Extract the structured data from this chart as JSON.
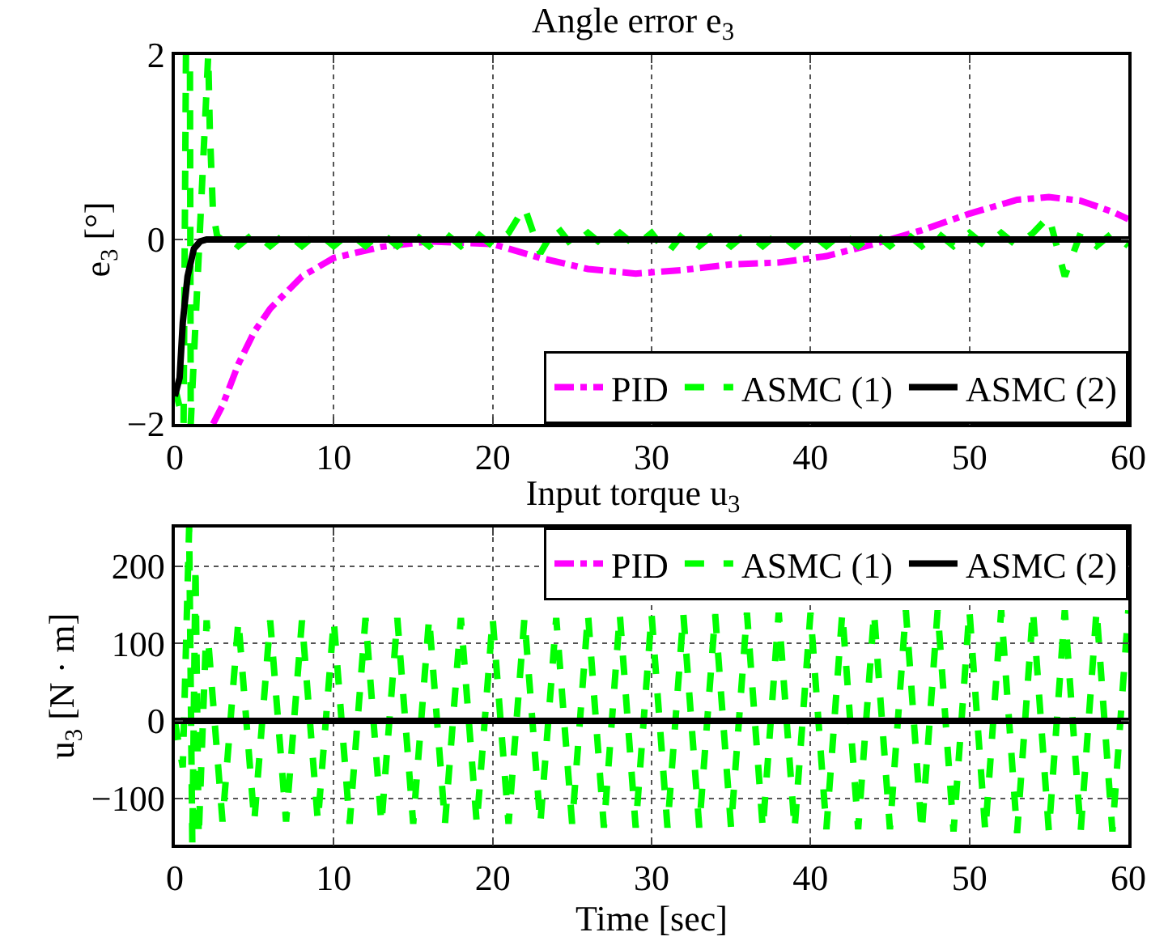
{
  "chart_data": [
    {
      "type": "line",
      "title": "Angle error e$_{3}$",
      "ylabel": "e$_{3}$ [°]",
      "xlim": [
        0,
        60
      ],
      "xticks": [
        0,
        10,
        20,
        30,
        40,
        50,
        60
      ],
      "ylim": [
        -2,
        2
      ],
      "yticks": [
        -2,
        0,
        2
      ],
      "grid": true,
      "legend": "bottom right",
      "series": [
        {
          "name": "PID",
          "color": "#ff00ff",
          "line_style": "dashdot",
          "x": [
            2.4,
            3,
            4,
            5,
            6,
            8,
            10,
            13,
            16,
            20,
            23,
            26,
            29,
            32,
            35,
            38,
            41,
            44,
            47,
            50,
            53,
            55,
            57,
            59,
            60
          ],
          "values": [
            -2,
            -1.8,
            -1.35,
            -1.0,
            -0.75,
            -0.4,
            -0.2,
            -0.08,
            -0.02,
            -0.05,
            -0.2,
            -0.32,
            -0.37,
            -0.33,
            -0.27,
            -0.25,
            -0.18,
            -0.05,
            0.1,
            0.28,
            0.43,
            0.46,
            0.42,
            0.3,
            0.22
          ]
        },
        {
          "name": "ASMC (1)",
          "color": "#00ff00",
          "line_style": "dashed",
          "x": [
            0,
            0.55,
            0.7,
            0.95,
            1.0,
            2.1,
            2.2,
            2.4,
            2.7,
            3,
            4,
            5,
            6,
            7,
            8,
            9,
            10,
            11,
            12,
            13,
            14,
            15,
            16,
            17,
            18,
            19,
            20,
            21,
            22,
            23,
            24,
            25,
            26,
            27,
            28,
            29,
            30,
            31,
            32,
            33,
            34,
            35,
            36,
            37,
            38,
            39,
            40,
            41,
            42,
            43,
            44,
            45,
            46,
            47,
            48,
            49,
            50,
            51,
            52,
            53,
            54,
            55,
            56,
            57,
            58,
            59,
            60
          ],
          "values": [
            -1.6,
            -2,
            2,
            2,
            -2,
            2,
            1.2,
            0.3,
            0.0,
            0.07,
            -0.07,
            0.07,
            -0.07,
            0.07,
            -0.07,
            0.07,
            -0.07,
            0.07,
            -0.07,
            0.07,
            -0.07,
            0.07,
            -0.07,
            0.07,
            -0.07,
            0.07,
            -0.07,
            0.07,
            0.35,
            -0.15,
            0.15,
            -0.07,
            0.07,
            -0.07,
            0.07,
            -0.07,
            0.07,
            -0.15,
            0.07,
            -0.07,
            0.07,
            -0.07,
            0.07,
            -0.07,
            0.07,
            -0.07,
            0.07,
            -0.07,
            0.07,
            -0.07,
            0.07,
            -0.07,
            0.07,
            -0.07,
            0.07,
            -0.07,
            0.07,
            -0.07,
            0.07,
            -0.07,
            0.07,
            0.25,
            -0.4,
            0.07,
            -0.07,
            0.07,
            -0.07
          ]
        },
        {
          "name": "ASMC (2)",
          "color": "#000000",
          "line_style": "solid",
          "x": [
            0,
            0.3,
            0.5,
            0.8,
            1.2,
            1.6,
            2,
            60
          ],
          "values": [
            -1.7,
            -1.5,
            -0.9,
            -0.4,
            -0.1,
            -0.02,
            0,
            0
          ]
        }
      ]
    },
    {
      "type": "line",
      "title": "Input torque u$_{3}$",
      "xlabel": "Time [sec]",
      "ylabel": "u$_{3}$ [N · m]",
      "xlim": [
        0,
        60
      ],
      "xticks": [
        0,
        10,
        20,
        30,
        40,
        50,
        60
      ],
      "ylim": [
        -160,
        250
      ],
      "yticks": [
        -100,
        0,
        100,
        200
      ],
      "grid": true,
      "legend": "top right",
      "series": [
        {
          "name": "PID",
          "color": "#ff00ff",
          "line_style": "dashdot"
        },
        {
          "name": "ASMC (1)",
          "color": "#00ff00",
          "line_style": "dashed",
          "x": [
            0,
            0.5,
            0.9,
            1.1,
            1.3,
            1.5,
            2,
            3,
            4,
            5,
            6,
            7,
            8,
            9,
            10,
            11,
            12,
            13,
            14,
            15,
            16,
            17,
            18,
            19,
            20,
            21,
            22,
            23,
            24,
            25,
            26,
            27,
            28,
            29,
            30,
            31,
            32,
            33,
            34,
            35,
            36,
            37,
            38,
            39,
            40,
            41,
            42,
            43,
            44,
            45,
            46,
            47,
            48,
            49,
            50,
            51,
            52,
            53,
            54,
            55,
            56,
            57,
            58,
            59,
            60
          ],
          "values": [
            0,
            -60,
            250,
            -160,
            200,
            -150,
            130,
            -130,
            130,
            -130,
            130,
            -130,
            130,
            -130,
            130,
            -133,
            133,
            -133,
            133,
            -133,
            133,
            -133,
            133,
            -133,
            133,
            -133,
            133,
            -133,
            133,
            -133,
            138,
            -138,
            138,
            -138,
            138,
            -138,
            138,
            -138,
            138,
            -138,
            140,
            -140,
            140,
            -140,
            140,
            -140,
            140,
            -140,
            140,
            -140,
            143,
            -143,
            143,
            -143,
            143,
            -143,
            143,
            -145,
            143,
            -143,
            143,
            -143,
            143,
            -143,
            143
          ]
        },
        {
          "name": "ASMC (2)",
          "color": "#000000",
          "line_style": "solid",
          "x": [
            0,
            60
          ],
          "values": [
            0,
            0
          ]
        }
      ]
    }
  ]
}
